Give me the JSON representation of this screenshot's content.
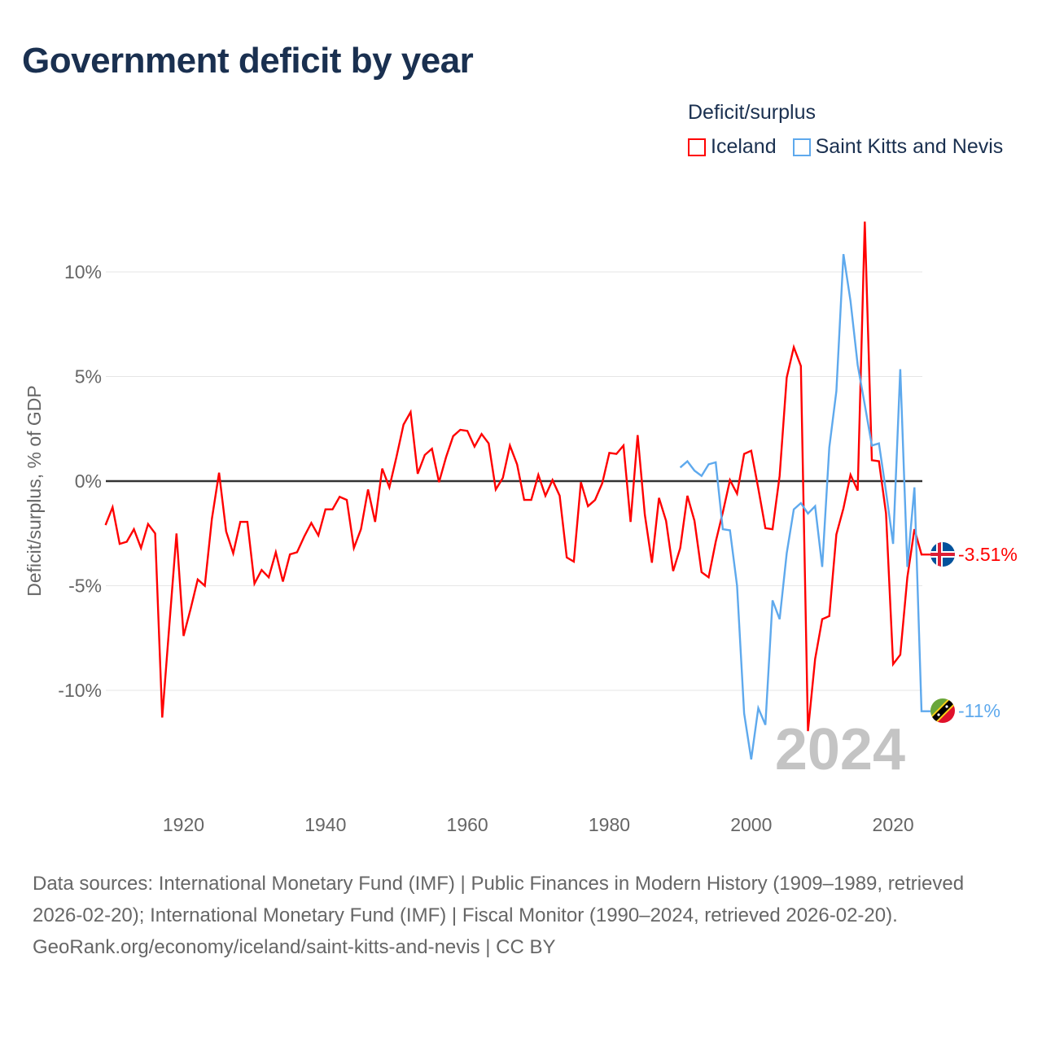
{
  "title": "Government deficit by year",
  "legend_title": "Deficit/surplus",
  "footer": {
    "sources": "Data sources: International Monetary Fund (IMF) | Public Finances in Modern History (1909–1989, retrieved 2026-02-20); International Monetary Fund (IMF) | Fiscal Monitor (1990–2024, retrieved 2026-02-20).",
    "attribution": "GeoRank.org/economy/iceland/saint-kitts-and-nevis | CC BY"
  },
  "chart_data": {
    "type": "line",
    "title": "Government deficit by year",
    "xlabel": "",
    "ylabel": "Deficit/surplus, % of GDP",
    "xlim": [
      1909,
      2024
    ],
    "ylim": [
      -14,
      13
    ],
    "x_ticks": [
      1920,
      1940,
      1960,
      1980,
      2000,
      2020
    ],
    "x_tick_labels": [
      "1920",
      "1940",
      "1960",
      "1980",
      "2000",
      "2020"
    ],
    "y_ticks": [
      10,
      5,
      0,
      -5,
      -10
    ],
    "y_tick_labels": [
      "10%",
      "5%",
      "0%",
      "-5%",
      "-10%"
    ],
    "grid": true,
    "legend_placement": "top-right",
    "year_watermark": "2024",
    "series": [
      {
        "name": "Iceland",
        "color": "#ff0000",
        "end_label": "-3.51%",
        "start_year": 1909,
        "values": [
          -2.1,
          -1.25,
          -3.0,
          -2.9,
          -2.3,
          -3.2,
          -2.05,
          -2.5,
          -11.3,
          -6.9,
          -2.5,
          -7.4,
          -6.1,
          -4.7,
          -5.0,
          -1.8,
          0.4,
          -2.4,
          -3.45,
          -1.95,
          -1.95,
          -4.9,
          -4.25,
          -4.6,
          -3.4,
          -4.8,
          -3.5,
          -3.4,
          -2.65,
          -2.0,
          -2.6,
          -1.35,
          -1.35,
          -0.75,
          -0.9,
          -3.2,
          -2.3,
          -0.4,
          -1.95,
          0.6,
          -0.3,
          1.15,
          2.7,
          3.3,
          0.35,
          1.25,
          1.55,
          -0.05,
          1.15,
          2.15,
          2.45,
          2.4,
          1.65,
          2.25,
          1.8,
          -0.4,
          0.15,
          1.7,
          0.8,
          -0.9,
          -0.9,
          0.3,
          -0.7,
          0.05,
          -0.7,
          -3.65,
          -3.85,
          -0.05,
          -1.2,
          -0.9,
          -0.1,
          1.35,
          1.3,
          1.7,
          -1.95,
          2.2,
          -1.6,
          -3.9,
          -0.8,
          -1.9,
          -4.3,
          -3.2,
          -0.7,
          -1.9,
          -4.35,
          -4.6,
          -2.9,
          -1.5,
          0.05,
          -0.6,
          1.3,
          1.45,
          -0.35,
          -2.25,
          -2.3,
          0.25,
          4.95,
          6.4,
          5.5,
          -11.95,
          -8.5,
          -6.6,
          -6.45,
          -2.55,
          -1.3,
          0.3,
          -0.45,
          12.4,
          1.0,
          0.95,
          -1.55,
          -8.75,
          -8.3,
          -4.6,
          -2.3,
          -3.51
        ]
      },
      {
        "name": "Saint Kitts and Nevis",
        "color": "#5ea9ed",
        "end_label": "-11%",
        "start_year": 1990,
        "values": [
          0.65,
          0.95,
          0.5,
          0.25,
          0.8,
          0.9,
          -2.3,
          -2.35,
          -5.0,
          -11.1,
          -13.3,
          -10.85,
          -11.65,
          -5.7,
          -6.6,
          -3.45,
          -1.35,
          -1.05,
          -1.55,
          -1.2,
          -4.1,
          1.6,
          4.3,
          10.85,
          8.6,
          5.55,
          3.65,
          1.7,
          1.8,
          -0.5,
          -3.0,
          5.35,
          -4.1,
          -0.3,
          -11.0
        ]
      }
    ]
  }
}
